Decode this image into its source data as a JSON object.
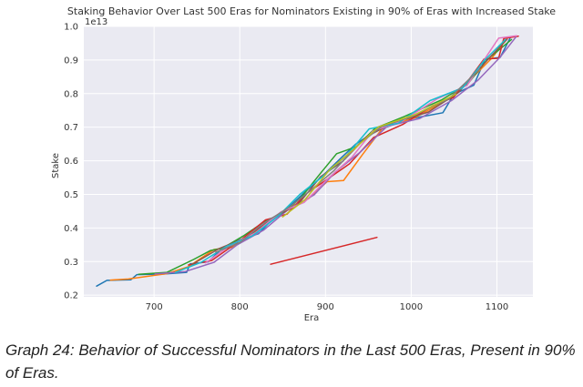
{
  "caption": "Graph 24: Behavior of Successful Nominators in the Last 500 Eras, Present in 90% of Eras.",
  "colors": {
    "plot_background": "#eaeaf2",
    "grid": "#ffffff",
    "series": [
      "#1f77b4",
      "#ff7f0e",
      "#2ca02c",
      "#d62728",
      "#9467bd",
      "#8c564b",
      "#e377c2",
      "#17becf",
      "#7f7f7f",
      "#bcbd22"
    ]
  },
  "chart_data": {
    "type": "line",
    "title": "Staking Behavior Over Last 500 Eras for Nominators Existing in 90% of Eras with Increased Stake",
    "xlabel": "Era",
    "ylabel": "Stake",
    "y_offset_label": "1e13",
    "xlim": [
      618,
      1142
    ],
    "ylim": [
      0.195,
      1.0
    ],
    "xticks": [
      700,
      800,
      900,
      1000,
      1100
    ],
    "yticks": [
      0.2,
      0.3,
      0.4,
      0.5,
      0.6,
      0.7,
      0.8,
      0.9,
      1.0
    ],
    "grid": true,
    "legend": "none",
    "series": [
      {
        "color": "#1f77b4",
        "x": [
          633,
          645,
          673,
          680,
          712,
          738,
          742,
          763,
          781,
          800,
          822,
          834,
          853,
          876,
          897,
          918,
          935,
          958,
          997,
          1037,
          1050,
          1073,
          1086,
          1104,
          1116
        ],
        "y": [
          0.227,
          0.244,
          0.246,
          0.261,
          0.263,
          0.268,
          0.293,
          0.299,
          0.343,
          0.365,
          0.383,
          0.415,
          0.452,
          0.507,
          0.556,
          0.608,
          0.649,
          0.688,
          0.724,
          0.743,
          0.798,
          0.825,
          0.901,
          0.908,
          0.968
        ]
      },
      {
        "color": "#ff7f0e",
        "x": [
          649,
          670,
          715,
          740,
          770,
          790,
          812,
          836,
          857,
          880,
          902,
          921,
          943,
          967,
          1004,
          1038,
          1055,
          1075,
          1094,
          1110
        ],
        "y": [
          0.245,
          0.248,
          0.264,
          0.285,
          0.336,
          0.342,
          0.373,
          0.425,
          0.461,
          0.487,
          0.538,
          0.541,
          0.618,
          0.699,
          0.728,
          0.776,
          0.807,
          0.857,
          0.905,
          0.958
        ]
      },
      {
        "color": "#2ca02c",
        "x": [
          682,
          715,
          746,
          766,
          780,
          804,
          830,
          852,
          872,
          893,
          913,
          936,
          958,
          992,
          1036,
          1066,
          1089,
          1117
        ],
        "y": [
          0.262,
          0.268,
          0.306,
          0.333,
          0.34,
          0.376,
          0.421,
          0.446,
          0.492,
          0.559,
          0.621,
          0.642,
          0.697,
          0.732,
          0.782,
          0.829,
          0.902,
          0.961
        ]
      },
      {
        "color": "#d62728",
        "x": [
          740,
          767,
          800,
          830,
          855,
          878,
          902,
          928,
          956,
          990,
          1025,
          1049,
          1068,
          1085,
          1102,
          1108,
          1125
        ],
        "y": [
          0.29,
          0.303,
          0.362,
          0.424,
          0.441,
          0.503,
          0.545,
          0.591,
          0.669,
          0.708,
          0.764,
          0.788,
          0.844,
          0.903,
          0.905,
          0.964,
          0.971
        ]
      },
      {
        "color": "#d62728",
        "x": [
          836,
          960
        ],
        "y": [
          0.292,
          0.372
        ]
      },
      {
        "color": "#9467bd",
        "x": [
          701,
          736,
          770,
          797,
          828,
          856,
          887,
          912,
          940,
          972,
          1010,
          1047,
          1078,
          1104,
          1122
        ],
        "y": [
          0.263,
          0.27,
          0.298,
          0.35,
          0.394,
          0.454,
          0.499,
          0.568,
          0.625,
          0.703,
          0.726,
          0.779,
          0.84,
          0.909,
          0.968
        ]
      },
      {
        "color": "#8c564b",
        "x": [
          744,
          776,
          808,
          838,
          868,
          894,
          920,
          948,
          980,
          1020,
          1055,
          1090,
          1112
        ],
        "y": [
          0.291,
          0.339,
          0.372,
          0.428,
          0.47,
          0.552,
          0.598,
          0.672,
          0.714,
          0.745,
          0.803,
          0.903,
          0.962
        ]
      },
      {
        "color": "#e377c2",
        "x": [
          760,
          790,
          818,
          848,
          875,
          903,
          931,
          955,
          990,
          1030,
          1065,
          1102,
          1123
        ],
        "y": [
          0.296,
          0.35,
          0.385,
          0.448,
          0.476,
          0.547,
          0.611,
          0.688,
          0.719,
          0.784,
          0.824,
          0.965,
          0.972
        ]
      },
      {
        "color": "#17becf",
        "x": [
          725,
          755,
          785,
          815,
          845,
          870,
          897,
          925,
          951,
          985,
          1022,
          1060,
          1085,
          1110
        ],
        "y": [
          0.268,
          0.298,
          0.346,
          0.377,
          0.436,
          0.5,
          0.554,
          0.617,
          0.695,
          0.712,
          0.779,
          0.817,
          0.898,
          0.961
        ]
      },
      {
        "color": "#7f7f7f",
        "x": [
          772,
          800,
          826,
          858,
          884,
          910,
          938,
          966,
          1000,
          1044,
          1080
        ],
        "y": [
          0.328,
          0.356,
          0.411,
          0.462,
          0.515,
          0.571,
          0.648,
          0.703,
          0.731,
          0.785,
          0.873
        ]
      },
      {
        "color": "#bcbd22",
        "x": [
          850,
          876,
          905,
          932,
          962,
          1005,
          1052
        ],
        "y": [
          0.433,
          0.484,
          0.574,
          0.632,
          0.701,
          0.738,
          0.798
        ]
      }
    ]
  }
}
